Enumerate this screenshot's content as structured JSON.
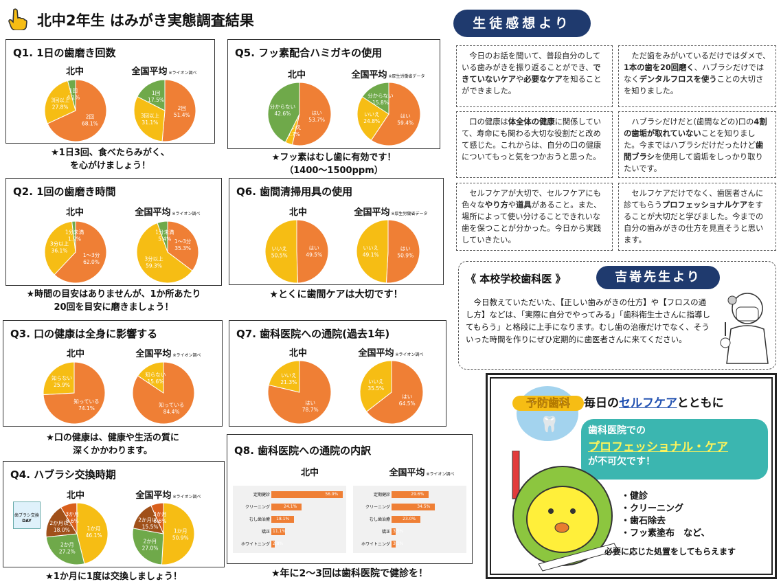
{
  "title": "北中2年生 はみがき実態調査結果",
  "labels": {
    "school": "北中",
    "national": "全国平均",
    "src": "※ライオン調べ",
    "src2": "※厚生労働省データ"
  },
  "q1": {
    "title": "Q1. 1日の歯磨き回数",
    "caption1": "★1日3回、食べたらみがく、",
    "caption2": "を心がけましょう！",
    "kita": [
      {
        "label": "2回",
        "value": "68.1%"
      },
      {
        "label": "3回以上",
        "value": "27.8%"
      },
      {
        "label": "1回",
        "value": "4.1%"
      }
    ],
    "nat": [
      {
        "label": "2回",
        "value": "51.4%"
      },
      {
        "label": "3回以上",
        "value": "31.1%"
      },
      {
        "label": "1回",
        "value": "17.5%"
      }
    ]
  },
  "q2": {
    "title": "Q2. 1回の歯磨き時間",
    "caption1": "★時間の目安はありませんが、1か所あたり",
    "caption2": "20回を目安に磨きましょう！",
    "kita": [
      {
        "label": "1〜3分",
        "value": "62.0%"
      },
      {
        "label": "3分以上",
        "value": "36.1%"
      },
      {
        "label": "1分未満",
        "value": "1.9%"
      }
    ],
    "nat": [
      {
        "label": "1〜3分",
        "value": "35.3%"
      },
      {
        "label": "3分以上",
        "value": "59.3%"
      },
      {
        "label": "1分未満",
        "value": "5.4%"
      }
    ]
  },
  "q3": {
    "title": "Q3. 口の健康は全身に影響する",
    "caption1": "★口の健康は、健康や生活の質に",
    "caption2": "深くかかわります。",
    "kita": [
      {
        "label": "知っている",
        "value": "74.1%"
      },
      {
        "label": "知らない",
        "value": "25.9%"
      }
    ],
    "nat": [
      {
        "label": "知っている",
        "value": "84.4%"
      },
      {
        "label": "知らない",
        "value": "15.6%"
      }
    ]
  },
  "q4": {
    "title": "Q4. ハブラシ交換時期",
    "caption": "★1か月に1度は交換しましょう！",
    "badge1": "歯ブラシ交換",
    "badge2": "DAY",
    "kita": [
      {
        "label": "1か月",
        "value": "46.1%"
      },
      {
        "label": "2か月",
        "value": "27.2%"
      },
      {
        "label": "2か月以上",
        "value": "18.0%"
      },
      {
        "label": "3か月",
        "value": "8.6%"
      }
    ],
    "nat": [
      {
        "label": "1か月",
        "value": "50.9%"
      },
      {
        "label": "2か月",
        "value": "27.0%"
      },
      {
        "label": "2か月以上",
        "value": "15.5%"
      },
      {
        "label": "3か月",
        "value": "6.6%"
      }
    ]
  },
  "q5": {
    "title": "Q5. フッ素配合ハミガキの使用",
    "caption1": "★フッ素はむし歯に有効です！",
    "caption2": "（1400〜1500ppm）",
    "kita": [
      {
        "label": "はい",
        "value": "53.7%"
      },
      {
        "label": "いいえ",
        "value": "3.7%"
      },
      {
        "label": "分からない",
        "value": "42.6%"
      }
    ],
    "nat": [
      {
        "label": "はい",
        "value": "59.4%"
      },
      {
        "label": "いいえ",
        "value": "24.8%"
      },
      {
        "label": "分からない",
        "value": "15.8%"
      }
    ]
  },
  "q6": {
    "title": "Q6. 歯間清掃用具の使用",
    "caption": "★とくに歯間ケアは大切です！",
    "kita": [
      {
        "label": "はい",
        "value": "49.5%"
      },
      {
        "label": "いいえ",
        "value": "50.5%"
      }
    ],
    "nat": [
      {
        "label": "はい",
        "value": "50.9%"
      },
      {
        "label": "いいえ",
        "value": "49.1%"
      }
    ]
  },
  "q7": {
    "title": "Q7. 歯科医院への通院(過去1年)",
    "kita": [
      {
        "label": "はい",
        "value": "78.7%"
      },
      {
        "label": "いいえ",
        "value": "21.3%"
      }
    ],
    "nat": [
      {
        "label": "はい",
        "value": "64.5%"
      },
      {
        "label": "いいえ",
        "value": "35.5%"
      }
    ]
  },
  "q8": {
    "title": "Q8. 歯科医院への通院の内訳",
    "caption": "★年に2〜3回は歯科医院で健診を！",
    "categories": [
      "定期健診",
      "クリーニング",
      "むし歯治療",
      "矯正",
      "ホワイトニング"
    ],
    "kita_values": [
      "56.9%",
      "24.1%",
      "18.1%",
      "11.1%",
      "2.8%"
    ],
    "nat_values": [
      "29.6%",
      "34.5%",
      "23.0%",
      "3.5%",
      "3.1%"
    ]
  },
  "chart_data": [
    {
      "type": "pie",
      "title": "Q1. 1日の歯磨き回数",
      "series": [
        {
          "name": "北中",
          "labels": [
            "2回",
            "3回以上",
            "1回"
          ],
          "values": [
            68.1,
            27.8,
            4.1
          ]
        },
        {
          "name": "全国平均",
          "labels": [
            "2回",
            "3回以上",
            "1回"
          ],
          "values": [
            51.4,
            31.1,
            17.5
          ]
        }
      ]
    },
    {
      "type": "pie",
      "title": "Q2. 1回の歯磨き時間",
      "series": [
        {
          "name": "北中",
          "labels": [
            "1〜3分",
            "3分以上",
            "1分未満"
          ],
          "values": [
            62.0,
            36.1,
            1.9
          ]
        },
        {
          "name": "全国平均",
          "labels": [
            "1〜3分",
            "3分以上",
            "1分未満"
          ],
          "values": [
            35.3,
            59.3,
            5.4
          ]
        }
      ]
    },
    {
      "type": "pie",
      "title": "Q3. 口の健康は全身に影響する",
      "series": [
        {
          "name": "北中",
          "labels": [
            "知っている",
            "知らない"
          ],
          "values": [
            74.1,
            25.9
          ]
        },
        {
          "name": "全国平均",
          "labels": [
            "知っている",
            "知らない"
          ],
          "values": [
            84.4,
            15.6
          ]
        }
      ]
    },
    {
      "type": "pie",
      "title": "Q4. ハブラシ交換時期",
      "series": [
        {
          "name": "北中",
          "labels": [
            "1か月",
            "2か月",
            "2か月以上",
            "3か月"
          ],
          "values": [
            46.1,
            27.2,
            18.0,
            8.6
          ]
        },
        {
          "name": "全国平均",
          "labels": [
            "1か月",
            "2か月",
            "2か月以上",
            "3か月"
          ],
          "values": [
            50.9,
            27.0,
            15.5,
            6.6
          ]
        }
      ]
    },
    {
      "type": "pie",
      "title": "Q5. フッ素配合ハミガキの使用",
      "series": [
        {
          "name": "北中",
          "labels": [
            "はい",
            "いいえ",
            "分からない"
          ],
          "values": [
            53.7,
            3.7,
            42.6
          ]
        },
        {
          "name": "全国平均",
          "labels": [
            "はい",
            "いいえ",
            "分からない"
          ],
          "values": [
            59.4,
            24.8,
            15.8
          ]
        }
      ]
    },
    {
      "type": "pie",
      "title": "Q6. 歯間清掃用具の使用",
      "series": [
        {
          "name": "北中",
          "labels": [
            "はい",
            "いいえ"
          ],
          "values": [
            49.5,
            50.5
          ]
        },
        {
          "name": "全国平均",
          "labels": [
            "はい",
            "いいえ"
          ],
          "values": [
            50.9,
            49.1
          ]
        }
      ]
    },
    {
      "type": "pie",
      "title": "Q7. 歯科医院への通院(過去1年)",
      "series": [
        {
          "name": "北中",
          "labels": [
            "はい",
            "いいえ"
          ],
          "values": [
            78.7,
            21.3
          ]
        },
        {
          "name": "全国平均",
          "labels": [
            "はい",
            "いいえ"
          ],
          "values": [
            64.5,
            35.5
          ]
        }
      ]
    },
    {
      "type": "bar",
      "title": "Q8. 歯科医院への通院の内訳",
      "categories": [
        "定期健診",
        "クリーニング",
        "むし歯治療",
        "矯正",
        "ホワイトニング"
      ],
      "series": [
        {
          "name": "北中",
          "values": [
            56.9,
            24.1,
            18.1,
            11.1,
            2.8
          ]
        },
        {
          "name": "全国平均",
          "values": [
            29.6,
            34.5,
            23.0,
            3.5,
            3.1
          ]
        }
      ]
    }
  ],
  "impressions": {
    "heading": "生徒感想より",
    "c1": [
      "今日のお話を聞いて、普段自分のしている歯みがきを振り返ることができ、",
      "できていないケア",
      "や",
      "必要なケア",
      "を知ることができました。"
    ],
    "c2": [
      "ただ歯をみがいているだけではダメで、",
      "1本の歯を20回磨く",
      "、ハブラシだけではなく",
      "デンタルフロスを使う",
      "ことの大切さを知りました。"
    ],
    "c3": [
      "口の健康は",
      "体全体の健康",
      "に関係していて、寿命にも関わる大切な役割だと改めて感じた。これからは、自分の口の健康についてもっと気をつかおうと思った。"
    ],
    "c4": [
      "ハブラシだけだと(歯間などの)口の",
      "4割の歯垢が取れていない",
      "ことを知りました。今まではハブラシだけだったけど",
      "歯間ブラシ",
      "を使用して歯垢をしっかり取りたいです。"
    ],
    "c5": [
      "セルフケアが大切で、セルフケアにも色々な",
      "やり方",
      "や",
      "道具",
      "があること。また、場所によって使い分けることできれいな歯を保つことが分かった。今日から実践していきたい。"
    ],
    "c6": [
      "セルフケアだけでなく、歯医者さんに診てもらう",
      "プロフェッショナルケア",
      "をすることが大切だと学びました。今までの自分の歯みがきの仕方を見直そうと思います。"
    ]
  },
  "doctor": {
    "label": "《 本校学校歯科医 》",
    "name": "吉嵜先生より",
    "text": "今日教えていただいた、【正しい歯みがきの仕方】や【フロスの通し方】などは、「実際に自分でやってみる」「歯科衛生士さんに指導してもらう」と格段に上手になります。むし歯の治療だけでなく、そういった時間を作りにぜひ定期的に歯医者さんに来てください。"
  },
  "promo": {
    "badge": "予防歯科",
    "head1": "毎日の",
    "head_link": "セルフケア",
    "head2": "とともに",
    "bubble1": "歯科医院での",
    "bubble2": "プロフェッショナル・ケア",
    "bubble3": "が不可欠です！",
    "items": [
      "・健診",
      "・クリーニング",
      "・歯石除去",
      "・フッ素塗布　など、"
    ],
    "footer": "必要に応じた処置をしてもらえます"
  },
  "colors": {
    "orange": "#ef7f35",
    "yellow": "#f6bd14",
    "green": "#6fa94a",
    "brown": "#a0501a",
    "navy": "#1f3a6e"
  }
}
